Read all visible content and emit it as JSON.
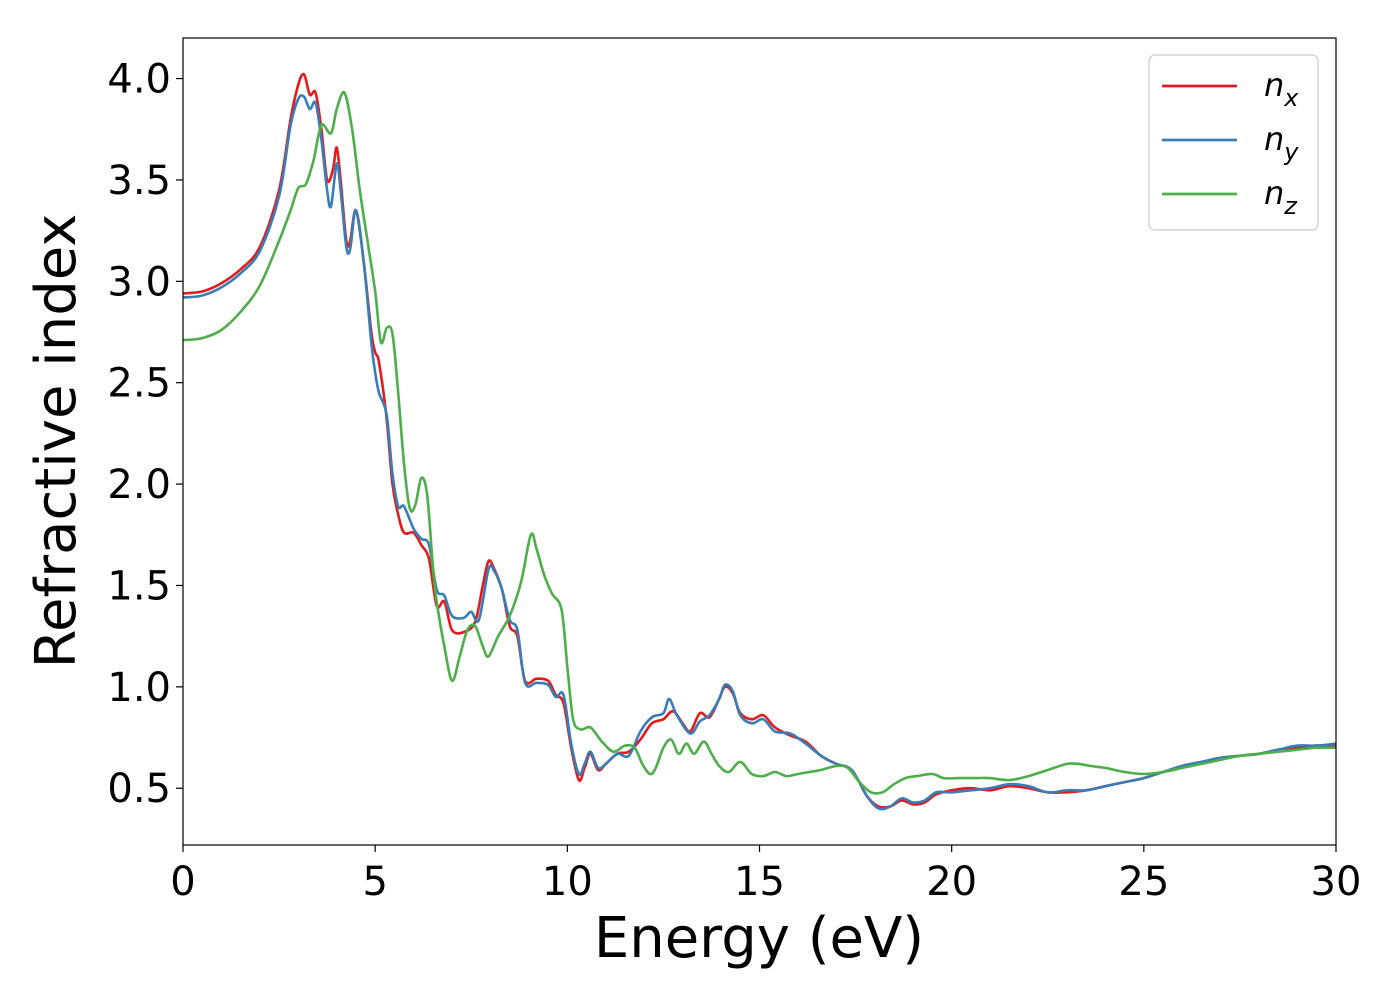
{
  "chart_data": {
    "type": "line",
    "title": "",
    "xlabel": "Energy (eV)",
    "ylabel": "Refractive index",
    "xlim": [
      0,
      30
    ],
    "ylim": [
      0.22,
      4.2
    ],
    "xticks": [
      0,
      5,
      10,
      15,
      20,
      25,
      30
    ],
    "yticks": [
      0.5,
      1.0,
      1.5,
      2.0,
      2.5,
      3.0,
      3.5,
      4.0
    ],
    "xtick_labels": [
      "0",
      "5",
      "10",
      "15",
      "20",
      "25",
      "30"
    ],
    "ytick_labels": [
      "0.5",
      "1.0",
      "1.5",
      "2.0",
      "2.5",
      "3.0",
      "3.5",
      "4.0"
    ],
    "grid": false,
    "legend_position": "top-right",
    "series": [
      {
        "name": "n_x",
        "label_base": "n",
        "label_sub": "x",
        "color": "#e41a1c",
        "points": [
          [
            0,
            2.94
          ],
          [
            0.5,
            2.95
          ],
          [
            1,
            2.99
          ],
          [
            1.5,
            3.06
          ],
          [
            2,
            3.17
          ],
          [
            2.5,
            3.45
          ],
          [
            2.8,
            3.8
          ],
          [
            3,
            3.97
          ],
          [
            3.15,
            4.02
          ],
          [
            3.3,
            3.92
          ],
          [
            3.45,
            3.93
          ],
          [
            3.6,
            3.75
          ],
          [
            3.75,
            3.5
          ],
          [
            3.9,
            3.55
          ],
          [
            4,
            3.66
          ],
          [
            4.1,
            3.5
          ],
          [
            4.25,
            3.2
          ],
          [
            4.35,
            3.2
          ],
          [
            4.5,
            3.35
          ],
          [
            4.7,
            3.1
          ],
          [
            4.9,
            2.75
          ],
          [
            5,
            2.65
          ],
          [
            5.1,
            2.6
          ],
          [
            5.3,
            2.32
          ],
          [
            5.45,
            2.0
          ],
          [
            5.6,
            1.85
          ],
          [
            5.75,
            1.76
          ],
          [
            6,
            1.76
          ],
          [
            6.2,
            1.7
          ],
          [
            6.4,
            1.63
          ],
          [
            6.6,
            1.4
          ],
          [
            6.8,
            1.42
          ],
          [
            7,
            1.28
          ],
          [
            7.3,
            1.27
          ],
          [
            7.6,
            1.32
          ],
          [
            7.8,
            1.5
          ],
          [
            7.95,
            1.62
          ],
          [
            8.1,
            1.58
          ],
          [
            8.3,
            1.48
          ],
          [
            8.5,
            1.3
          ],
          [
            8.7,
            1.25
          ],
          [
            8.9,
            1.03
          ],
          [
            9.2,
            1.04
          ],
          [
            9.5,
            1.03
          ],
          [
            9.7,
            0.96
          ],
          [
            9.9,
            0.92
          ],
          [
            10.1,
            0.7
          ],
          [
            10.3,
            0.54
          ],
          [
            10.45,
            0.6
          ],
          [
            10.6,
            0.67
          ],
          [
            10.8,
            0.59
          ],
          [
            11,
            0.62
          ],
          [
            11.3,
            0.67
          ],
          [
            11.6,
            0.68
          ],
          [
            11.9,
            0.74
          ],
          [
            12.2,
            0.82
          ],
          [
            12.5,
            0.84
          ],
          [
            12.75,
            0.88
          ],
          [
            13,
            0.82
          ],
          [
            13.2,
            0.78
          ],
          [
            13.45,
            0.87
          ],
          [
            13.7,
            0.85
          ],
          [
            13.95,
            0.94
          ],
          [
            14.1,
            1.0
          ],
          [
            14.3,
            0.97
          ],
          [
            14.5,
            0.87
          ],
          [
            14.8,
            0.84
          ],
          [
            15.1,
            0.86
          ],
          [
            15.4,
            0.8
          ],
          [
            15.8,
            0.76
          ],
          [
            16.2,
            0.73
          ],
          [
            16.6,
            0.66
          ],
          [
            17,
            0.62
          ],
          [
            17.4,
            0.59
          ],
          [
            17.8,
            0.46
          ],
          [
            18.1,
            0.41
          ],
          [
            18.4,
            0.41
          ],
          [
            18.7,
            0.44
          ],
          [
            19,
            0.42
          ],
          [
            19.3,
            0.43
          ],
          [
            19.6,
            0.47
          ],
          [
            20,
            0.49
          ],
          [
            20.5,
            0.5
          ],
          [
            21,
            0.49
          ],
          [
            21.5,
            0.51
          ],
          [
            22,
            0.5
          ],
          [
            22.5,
            0.48
          ],
          [
            23,
            0.48
          ],
          [
            23.5,
            0.49
          ],
          [
            24,
            0.51
          ],
          [
            24.5,
            0.53
          ],
          [
            25,
            0.55
          ],
          [
            25.5,
            0.58
          ],
          [
            26,
            0.61
          ],
          [
            26.5,
            0.63
          ],
          [
            27,
            0.65
          ],
          [
            27.5,
            0.66
          ],
          [
            28,
            0.67
          ],
          [
            28.5,
            0.69
          ],
          [
            29,
            0.7
          ],
          [
            29.5,
            0.71
          ],
          [
            30,
            0.71
          ]
        ]
      },
      {
        "name": "n_y",
        "label_base": "n",
        "label_sub": "y",
        "color": "#377eb8",
        "points": [
          [
            0,
            2.92
          ],
          [
            0.5,
            2.93
          ],
          [
            1,
            2.97
          ],
          [
            1.5,
            3.04
          ],
          [
            2,
            3.15
          ],
          [
            2.5,
            3.42
          ],
          [
            2.8,
            3.77
          ],
          [
            3,
            3.9
          ],
          [
            3.15,
            3.91
          ],
          [
            3.3,
            3.85
          ],
          [
            3.45,
            3.88
          ],
          [
            3.6,
            3.7
          ],
          [
            3.75,
            3.45
          ],
          [
            3.85,
            3.37
          ],
          [
            4,
            3.58
          ],
          [
            4.1,
            3.45
          ],
          [
            4.25,
            3.17
          ],
          [
            4.35,
            3.16
          ],
          [
            4.5,
            3.35
          ],
          [
            4.7,
            3.1
          ],
          [
            4.9,
            2.7
          ],
          [
            5,
            2.55
          ],
          [
            5.1,
            2.45
          ],
          [
            5.3,
            2.34
          ],
          [
            5.45,
            2.05
          ],
          [
            5.6,
            1.89
          ],
          [
            5.75,
            1.89
          ],
          [
            6,
            1.78
          ],
          [
            6.2,
            1.73
          ],
          [
            6.4,
            1.7
          ],
          [
            6.6,
            1.48
          ],
          [
            6.8,
            1.45
          ],
          [
            7,
            1.35
          ],
          [
            7.3,
            1.34
          ],
          [
            7.5,
            1.37
          ],
          [
            7.7,
            1.33
          ],
          [
            7.95,
            1.58
          ],
          [
            8.1,
            1.57
          ],
          [
            8.3,
            1.48
          ],
          [
            8.5,
            1.33
          ],
          [
            8.7,
            1.28
          ],
          [
            8.9,
            1.02
          ],
          [
            9.2,
            1.02
          ],
          [
            9.5,
            1.01
          ],
          [
            9.7,
            0.95
          ],
          [
            9.9,
            0.96
          ],
          [
            10.1,
            0.72
          ],
          [
            10.3,
            0.57
          ],
          [
            10.45,
            0.62
          ],
          [
            10.6,
            0.68
          ],
          [
            10.8,
            0.6
          ],
          [
            11,
            0.62
          ],
          [
            11.3,
            0.67
          ],
          [
            11.6,
            0.66
          ],
          [
            11.9,
            0.78
          ],
          [
            12.2,
            0.85
          ],
          [
            12.5,
            0.87
          ],
          [
            12.65,
            0.94
          ],
          [
            12.85,
            0.86
          ],
          [
            13.2,
            0.77
          ],
          [
            13.45,
            0.83
          ],
          [
            13.7,
            0.86
          ],
          [
            13.95,
            0.94
          ],
          [
            14.1,
            1.01
          ],
          [
            14.3,
            0.98
          ],
          [
            14.5,
            0.86
          ],
          [
            14.8,
            0.82
          ],
          [
            15.1,
            0.84
          ],
          [
            15.4,
            0.78
          ],
          [
            15.8,
            0.77
          ],
          [
            16.2,
            0.72
          ],
          [
            16.6,
            0.66
          ],
          [
            17,
            0.62
          ],
          [
            17.4,
            0.59
          ],
          [
            17.8,
            0.46
          ],
          [
            18.1,
            0.4
          ],
          [
            18.4,
            0.41
          ],
          [
            18.7,
            0.45
          ],
          [
            19,
            0.43
          ],
          [
            19.3,
            0.44
          ],
          [
            19.6,
            0.48
          ],
          [
            20,
            0.48
          ],
          [
            20.5,
            0.49
          ],
          [
            21,
            0.5
          ],
          [
            21.5,
            0.52
          ],
          [
            22,
            0.51
          ],
          [
            22.5,
            0.48
          ],
          [
            23,
            0.49
          ],
          [
            23.5,
            0.49
          ],
          [
            24,
            0.51
          ],
          [
            24.5,
            0.53
          ],
          [
            25,
            0.55
          ],
          [
            25.5,
            0.58
          ],
          [
            26,
            0.61
          ],
          [
            26.5,
            0.63
          ],
          [
            27,
            0.65
          ],
          [
            27.5,
            0.66
          ],
          [
            28,
            0.67
          ],
          [
            28.5,
            0.69
          ],
          [
            29,
            0.71
          ],
          [
            29.5,
            0.71
          ],
          [
            30,
            0.72
          ]
        ]
      },
      {
        "name": "n_z",
        "label_base": "n",
        "label_sub": "z",
        "color": "#4daf4a",
        "points": [
          [
            0,
            2.71
          ],
          [
            0.5,
            2.72
          ],
          [
            1,
            2.76
          ],
          [
            1.5,
            2.85
          ],
          [
            2,
            2.98
          ],
          [
            2.5,
            3.2
          ],
          [
            2.8,
            3.35
          ],
          [
            3,
            3.46
          ],
          [
            3.2,
            3.48
          ],
          [
            3.4,
            3.6
          ],
          [
            3.6,
            3.77
          ],
          [
            3.85,
            3.73
          ],
          [
            4,
            3.85
          ],
          [
            4.2,
            3.93
          ],
          [
            4.4,
            3.75
          ],
          [
            4.6,
            3.45
          ],
          [
            4.8,
            3.2
          ],
          [
            5,
            2.95
          ],
          [
            5.15,
            2.7
          ],
          [
            5.3,
            2.77
          ],
          [
            5.45,
            2.74
          ],
          [
            5.6,
            2.45
          ],
          [
            5.75,
            2.1
          ],
          [
            5.9,
            1.88
          ],
          [
            6.05,
            1.9
          ],
          [
            6.2,
            2.03
          ],
          [
            6.35,
            1.95
          ],
          [
            6.5,
            1.6
          ],
          [
            6.6,
            1.42
          ],
          [
            6.8,
            1.2
          ],
          [
            7,
            1.03
          ],
          [
            7.2,
            1.15
          ],
          [
            7.4,
            1.28
          ],
          [
            7.6,
            1.3
          ],
          [
            7.8,
            1.2
          ],
          [
            7.95,
            1.15
          ],
          [
            8.2,
            1.25
          ],
          [
            8.5,
            1.35
          ],
          [
            8.8,
            1.52
          ],
          [
            9.05,
            1.75
          ],
          [
            9.2,
            1.68
          ],
          [
            9.4,
            1.55
          ],
          [
            9.6,
            1.46
          ],
          [
            9.85,
            1.38
          ],
          [
            10,
            1.1
          ],
          [
            10.15,
            0.84
          ],
          [
            10.35,
            0.79
          ],
          [
            10.6,
            0.8
          ],
          [
            10.9,
            0.73
          ],
          [
            11.2,
            0.68
          ],
          [
            11.5,
            0.71
          ],
          [
            11.75,
            0.7
          ],
          [
            11.95,
            0.62
          ],
          [
            12.15,
            0.57
          ],
          [
            12.3,
            0.6
          ],
          [
            12.5,
            0.7
          ],
          [
            12.7,
            0.74
          ],
          [
            12.9,
            0.67
          ],
          [
            13.1,
            0.72
          ],
          [
            13.3,
            0.67
          ],
          [
            13.55,
            0.73
          ],
          [
            13.75,
            0.67
          ],
          [
            13.95,
            0.61
          ],
          [
            14.2,
            0.58
          ],
          [
            14.5,
            0.63
          ],
          [
            14.8,
            0.57
          ],
          [
            15.1,
            0.56
          ],
          [
            15.4,
            0.58
          ],
          [
            15.7,
            0.56
          ],
          [
            16,
            0.57
          ],
          [
            16.3,
            0.58
          ],
          [
            16.6,
            0.59
          ],
          [
            17,
            0.61
          ],
          [
            17.3,
            0.6
          ],
          [
            17.6,
            0.53
          ],
          [
            17.9,
            0.48
          ],
          [
            18.2,
            0.48
          ],
          [
            18.5,
            0.52
          ],
          [
            18.8,
            0.55
          ],
          [
            19.1,
            0.56
          ],
          [
            19.5,
            0.57
          ],
          [
            19.8,
            0.55
          ],
          [
            20.2,
            0.55
          ],
          [
            20.6,
            0.55
          ],
          [
            21,
            0.55
          ],
          [
            21.5,
            0.54
          ],
          [
            22,
            0.56
          ],
          [
            22.5,
            0.59
          ],
          [
            23,
            0.62
          ],
          [
            23.3,
            0.62
          ],
          [
            23.6,
            0.61
          ],
          [
            24,
            0.6
          ],
          [
            24.5,
            0.58
          ],
          [
            25,
            0.57
          ],
          [
            25.5,
            0.58
          ],
          [
            26,
            0.6
          ],
          [
            26.5,
            0.62
          ],
          [
            27,
            0.64
          ],
          [
            27.5,
            0.66
          ],
          [
            28,
            0.67
          ],
          [
            28.5,
            0.68
          ],
          [
            29,
            0.69
          ],
          [
            29.5,
            0.7
          ],
          [
            30,
            0.7
          ]
        ]
      }
    ]
  }
}
